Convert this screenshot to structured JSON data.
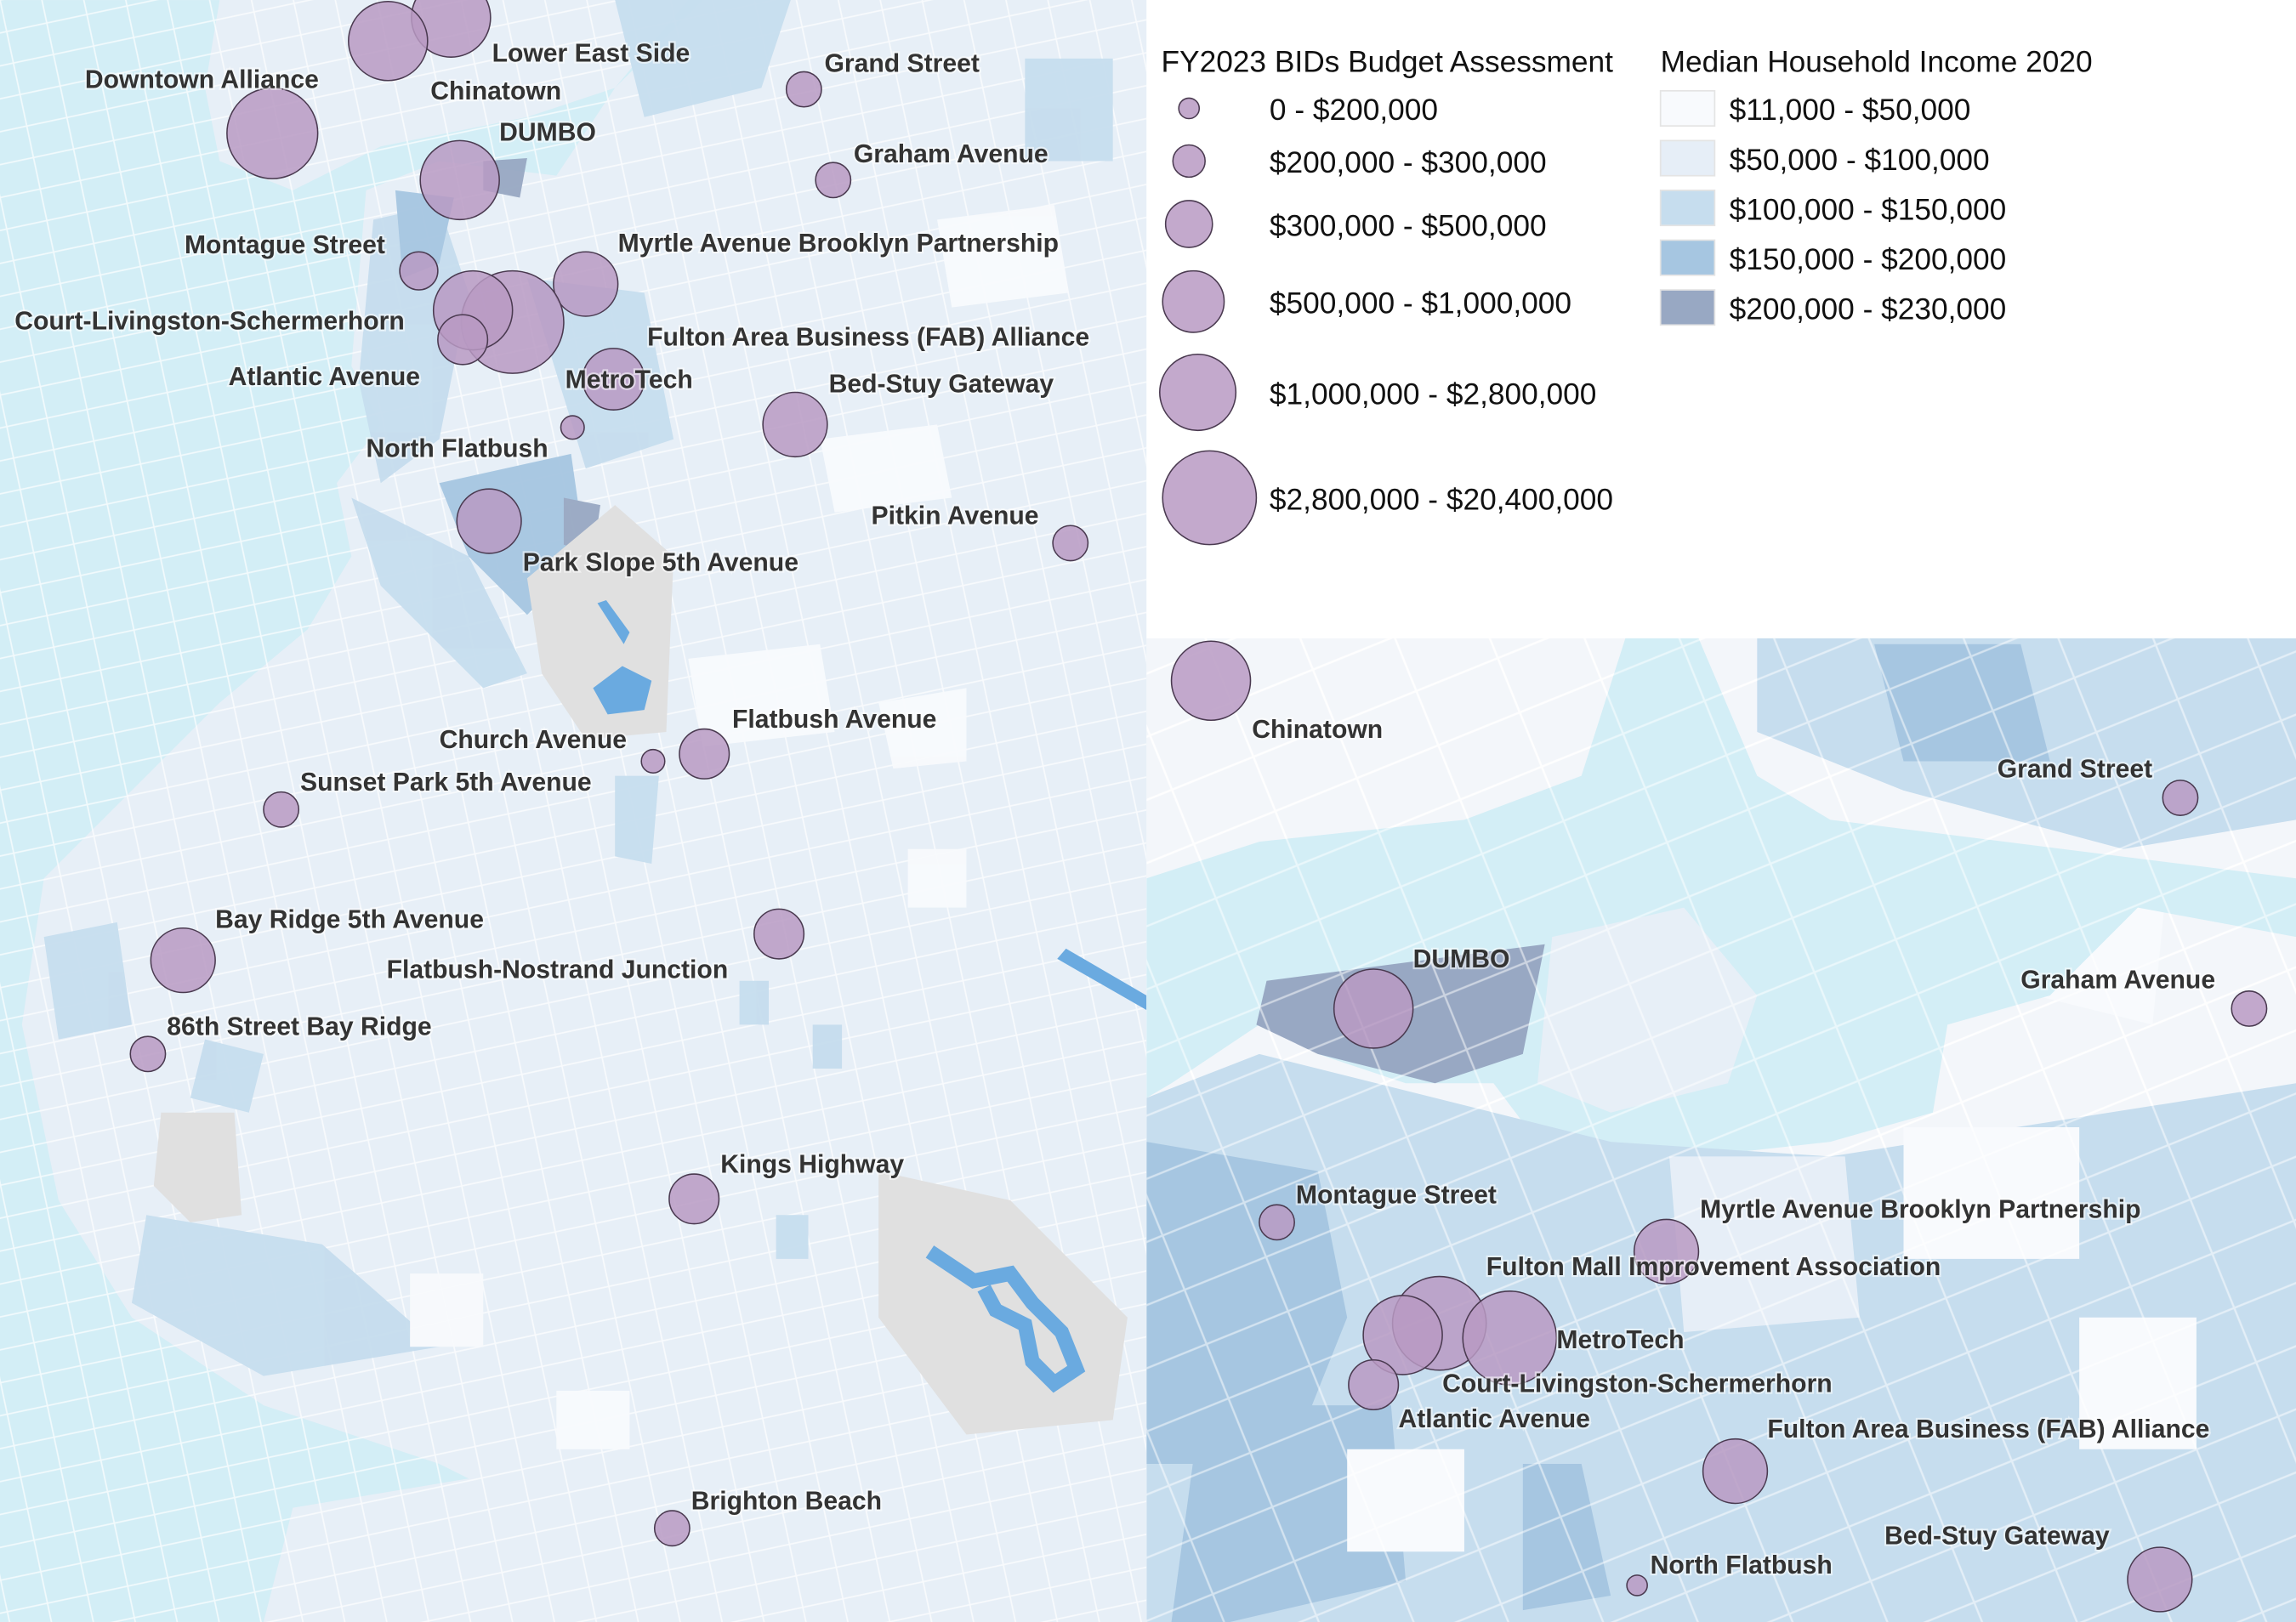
{
  "colors": {
    "water": "#d3eef6",
    "land_bg": "#e7eff7",
    "bid_circle": "#b99ac3",
    "income_classes": [
      "#f8fafd",
      "#e6eef7",
      "#c6ddee",
      "#a6c6e1",
      "#98a8c3"
    ],
    "park": "#e3e3e3",
    "lake": "#6aaae0"
  },
  "legend": {
    "bids_title": "FY2023 BIDs Budget Assessment",
    "bids_classes": [
      "0 - $200,000",
      "$200,000 - $300,000",
      "$300,000 - $500,000",
      "$500,000 - $1,000,000",
      "$1,000,000 - $2,800,000",
      "$2,800,000 - $20,400,000"
    ],
    "income_title": "Median Household Income 2020",
    "income_classes": [
      "$11,000 - $50,000",
      "$50,000 - $100,000",
      "$100,000 - $150,000",
      "$150,000 - $200,000",
      "$200,000 - $230,000"
    ]
  },
  "main_map": {
    "labels": [
      "Lower East Side",
      "Chinatown",
      "Downtown Alliance",
      "Grand Street",
      "DUMBO",
      "Graham Avenue",
      "Montague Street",
      "Myrtle Avenue Brooklyn Partnership",
      "Court-Livingston-Schermerhorn",
      "Fulton Area Business (FAB) Alliance",
      "Atlantic Avenue",
      "MetroTech",
      "Bed-Stuy Gateway",
      "North Flatbush",
      "Pitkin Avenue",
      "Park Slope 5th Avenue",
      "Church Avenue",
      "Flatbush Avenue",
      "Sunset Park 5th Avenue",
      "Bay Ridge 5th Avenue",
      "Flatbush-Nostrand Junction",
      "86th Street Bay Ridge",
      "Kings Highway",
      "Brighton Beach"
    ]
  },
  "inset_map": {
    "labels": [
      "Chinatown",
      "Grand Street",
      "DUMBO",
      "Graham Avenue",
      "Montague Street",
      "Myrtle Avenue Brooklyn Partnership",
      "Fulton Mall Improvement Association",
      "MetroTech",
      "Court-Livingston-Schermerhorn",
      "Atlantic Avenue",
      "Fulton Area Business (FAB) Alliance",
      "Bed-Stuy Gateway",
      "North Flatbush"
    ]
  }
}
